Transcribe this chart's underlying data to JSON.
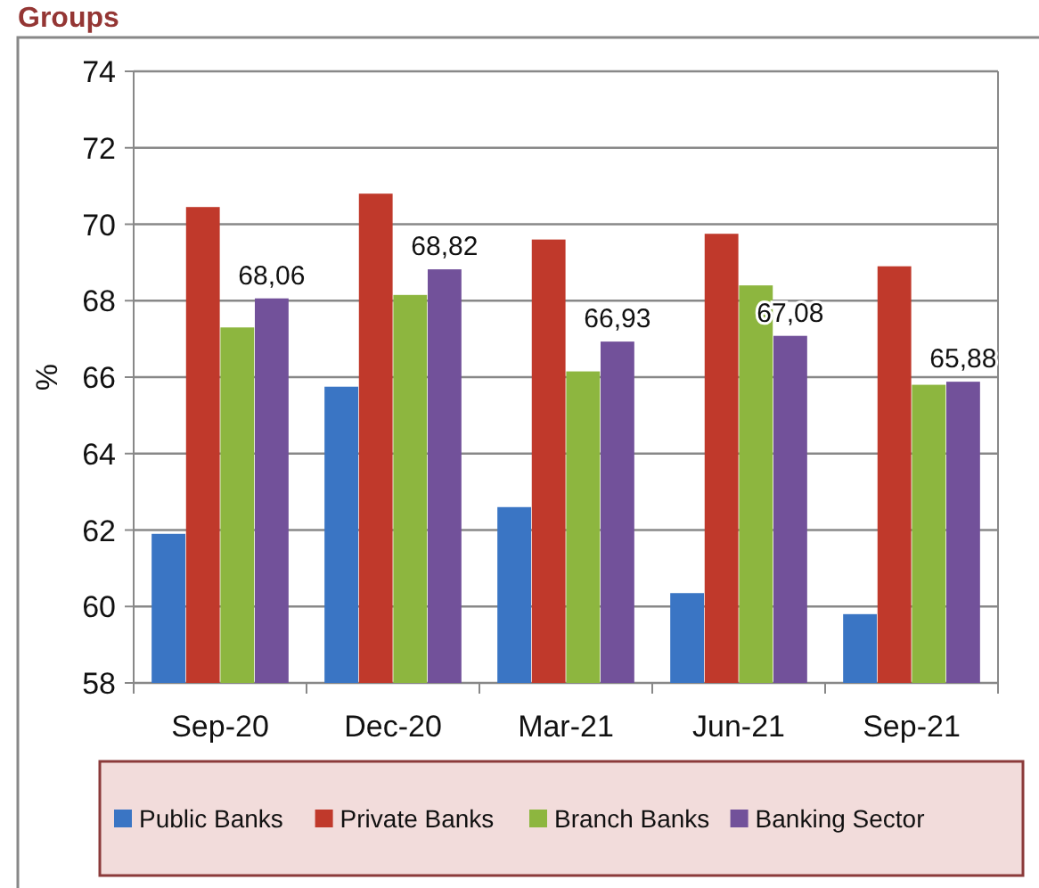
{
  "chart_data": {
    "type": "bar",
    "title": "Groups",
    "ylabel": "%",
    "categories": [
      "Sep-20",
      "Dec-20",
      "Mar-21",
      "Jun-21",
      "Sep-21"
    ],
    "series": [
      {
        "name": "Public Banks",
        "color": "#3a75c4",
        "values": [
          61.9,
          65.75,
          62.6,
          60.35,
          59.8
        ]
      },
      {
        "name": "Private Banks",
        "color": "#c0392b",
        "values": [
          70.45,
          70.8,
          69.6,
          69.75,
          68.9
        ]
      },
      {
        "name": "Branch Banks",
        "color": "#8db63f",
        "values": [
          67.3,
          68.15,
          66.15,
          68.4,
          65.8
        ]
      },
      {
        "name": "Banking Sector",
        "color": "#72519a",
        "values": [
          68.06,
          68.82,
          66.93,
          67.08,
          65.88
        ],
        "value_labels": [
          "68,06",
          "68,82",
          "66,93",
          "67,08",
          "65,88"
        ]
      }
    ],
    "ylim": [
      58,
      74
    ],
    "yticks": [
      58,
      60,
      62,
      64,
      66,
      68,
      70,
      72,
      74
    ],
    "grid": "y",
    "legend": "bottom"
  }
}
